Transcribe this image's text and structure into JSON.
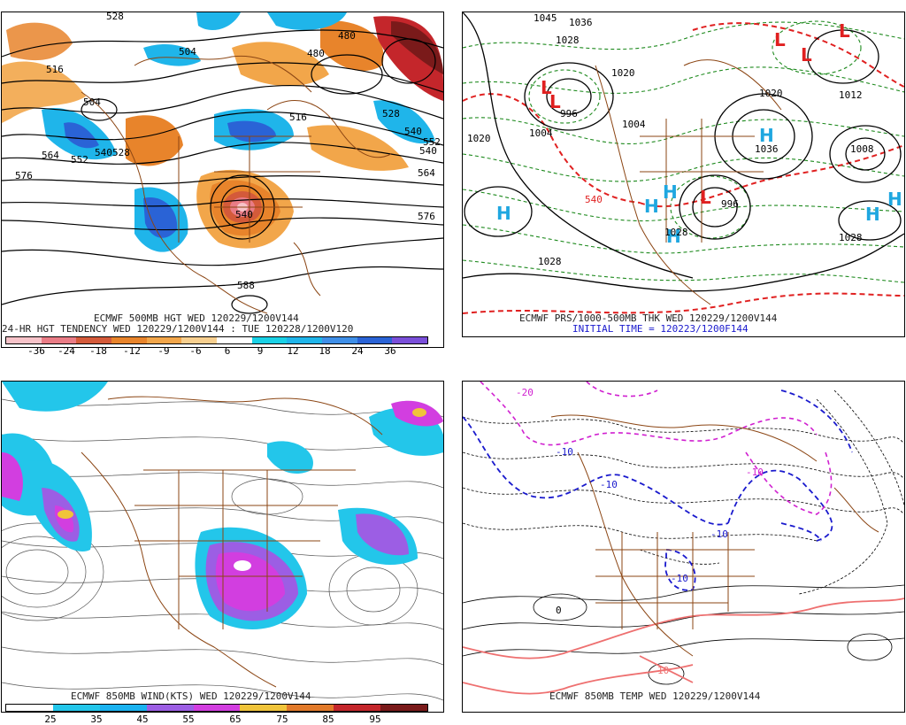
{
  "panels": {
    "p1": {
      "caption_line1": "ECMWF 500MB HGT WED 120229/1200V144",
      "caption_line2": "24-HR HGT TENDENCY WED 120229/1200V144 : TUE 120228/1200V120",
      "colorbar_ticks": [
        "-36",
        "-24",
        "-18",
        "-12",
        "-9",
        "-6",
        "6",
        "9",
        "12",
        "18",
        "24",
        "36"
      ],
      "colorbar_colors": [
        "#f7c3c9",
        "#e97c86",
        "#d45a3a",
        "#e8842b",
        "#f2a64a",
        "#f7cf8f",
        "#ffffff",
        "#19d1e6",
        "#1fb5ea",
        "#3f8fe8",
        "#2a63d6",
        "#7a4fd9"
      ],
      "contour_labels": [
        "528",
        "504",
        "480",
        "480",
        "516",
        "504",
        "540",
        "528",
        "564",
        "552",
        "540",
        "528",
        "516",
        "540",
        "552",
        "564",
        "576",
        "576",
        "540",
        "588"
      ]
    },
    "p2": {
      "caption_line1": "ECMWF PRS/1000-500MB THK WED 120229/1200V144",
      "caption_line2": "INITIAL TIME = 120223/1200F144",
      "pressure_labels": [
        "1036",
        "1045",
        "1028",
        "1020",
        "996",
        "1004",
        "1004",
        "1020",
        "1036",
        "1008",
        "996",
        "1012",
        "1028",
        "1028",
        "1028",
        "540",
        "1020"
      ],
      "highs": [
        "H",
        "H",
        "H",
        "H",
        "H",
        "H",
        "H"
      ],
      "lows": [
        "L",
        "L",
        "L",
        "L",
        "L",
        "L"
      ]
    },
    "p3": {
      "caption": "ECMWF 850MB WIND(KTS) WED 120229/1200V144",
      "colorbar_ticks": [
        "25",
        "35",
        "45",
        "55",
        "65",
        "75",
        "85",
        "95"
      ],
      "colorbar_colors": [
        "#ffffff",
        "#23c6ea",
        "#1ab2f0",
        "#9c5ee4",
        "#d23ee0",
        "#f0c43a",
        "#e27a2a",
        "#c4262b",
        "#7a1a1a"
      ]
    },
    "p4": {
      "caption": "ECMWF 850MB TEMP WED 120229/1200V144",
      "contour_labels": [
        "-20",
        "-10",
        "-10",
        "-10",
        "-10",
        "0",
        "-10",
        "10"
      ]
    }
  }
}
